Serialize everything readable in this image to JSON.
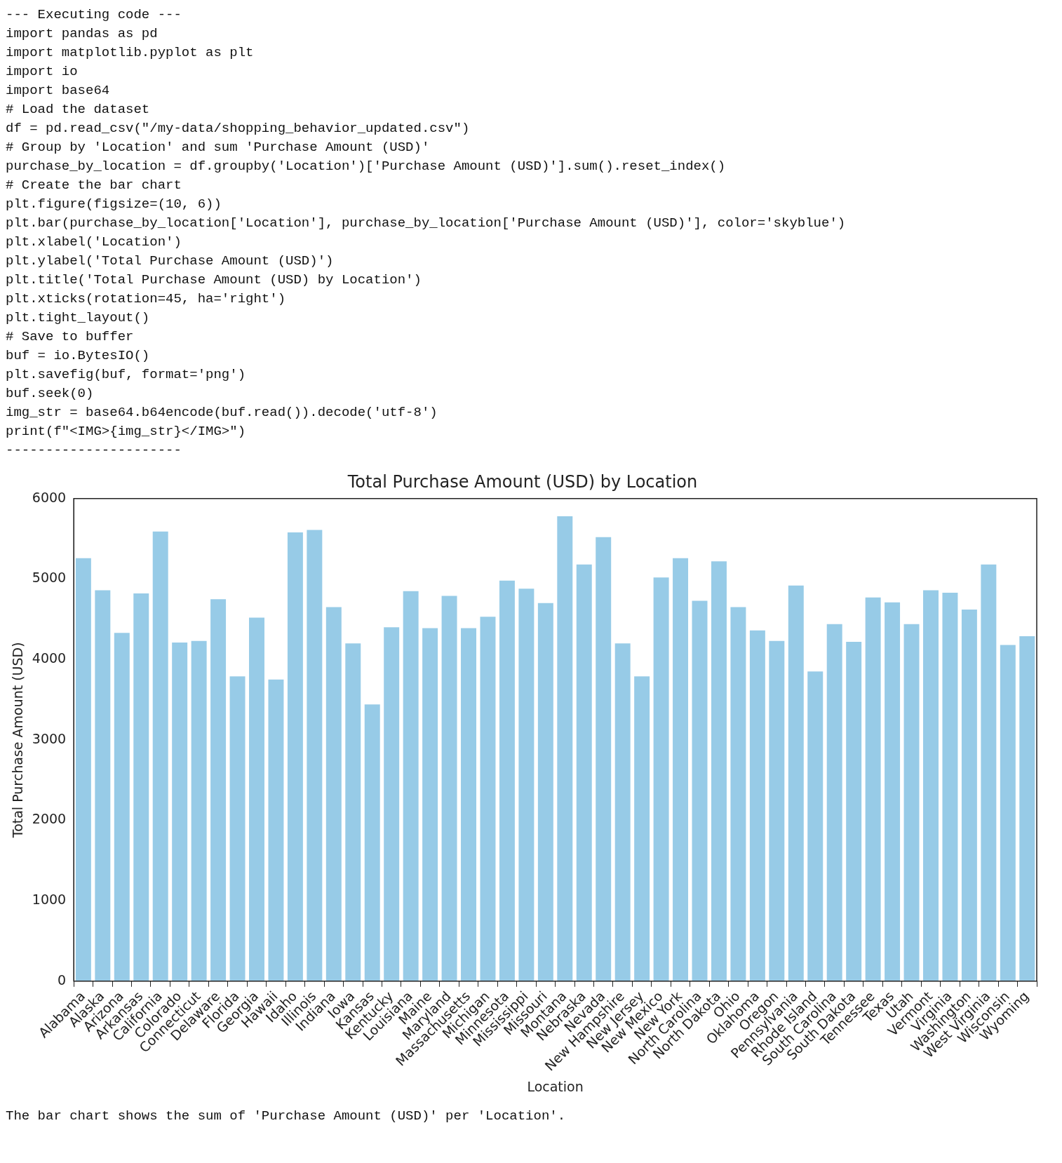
{
  "chart_data": {
    "type": "bar",
    "title": "Total Purchase Amount (USD) by Location",
    "xlabel": "Location",
    "ylabel": "Total Purchase Amount (USD)",
    "categories": [
      "Alabama",
      "Alaska",
      "Arizona",
      "Arkansas",
      "California",
      "Colorado",
      "Connecticut",
      "Delaware",
      "Florida",
      "Georgia",
      "Hawaii",
      "Idaho",
      "Illinois",
      "Indiana",
      "Iowa",
      "Kansas",
      "Kentucky",
      "Louisiana",
      "Maine",
      "Maryland",
      "Massachusetts",
      "Michigan",
      "Minnesota",
      "Mississippi",
      "Missouri",
      "Montana",
      "Nebraska",
      "Nevada",
      "New Hampshire",
      "New Jersey",
      "New Mexico",
      "New York",
      "North Carolina",
      "North Dakota",
      "Ohio",
      "Oklahoma",
      "Oregon",
      "Pennsylvania",
      "Rhode Island",
      "South Carolina",
      "South Dakota",
      "Tennessee",
      "Texas",
      "Utah",
      "Vermont",
      "Virginia",
      "Washington",
      "West Virginia",
      "Wisconsin",
      "Wyoming"
    ],
    "values": [
      5260,
      4860,
      4330,
      4820,
      5590,
      4210,
      4230,
      4750,
      3790,
      4520,
      3750,
      5580,
      5610,
      4650,
      4200,
      3440,
      4400,
      4850,
      4390,
      4790,
      4390,
      4530,
      4980,
      4880,
      4700,
      5780,
      5180,
      5520,
      4200,
      3790,
      5020,
      5260,
      4730,
      5220,
      4650,
      4360,
      4230,
      4920,
      3850,
      4440,
      4220,
      4770,
      4710,
      4440,
      4860,
      4830,
      4620,
      5180,
      4180,
      4290
    ],
    "color": "#97cbe7",
    "ylim": [
      0,
      6000
    ],
    "yticks": [
      0,
      1000,
      2000,
      3000,
      4000,
      5000,
      6000
    ],
    "grid": false,
    "legend": false,
    "annotations": [
      "--- Executing code ---",
      "import pandas as pd",
      "import matplotlib.pyplot as plt",
      "import io",
      "import base64",
      "# Load the dataset",
      "df = pd.read_csv(\"/my-data/shopping_behavior_updated.csv\")",
      "# Group by 'Location' and sum 'Purchase Amount (USD)'",
      "purchase_by_location = df.groupby('Location')['Purchase Amount (USD)'].sum().reset_index()",
      "# Create the bar chart",
      "plt.figure(figsize=(10, 6))",
      "plt.bar(purchase_by_location['Location'], purchase_by_location['Purchase Amount (USD)'], color='skyblue')",
      "plt.xlabel('Location')",
      "plt.ylabel('Total Purchase Amount (USD)')",
      "plt.title('Total Purchase Amount (USD) by Location')",
      "plt.xticks(rotation=45, ha='right')",
      "plt.tight_layout()",
      "# Save to buffer",
      "buf = io.BytesIO()",
      "plt.savefig(buf, format='png')",
      "buf.seek(0)",
      "img_str = base64.b64encode(buf.read()).decode('utf-8')",
      "print(f\"<IMG>{img_str}</IMG>\")",
      "----------------------",
      "The bar chart shows the sum of 'Purchase Amount (USD)' per 'Location'."
    ]
  }
}
